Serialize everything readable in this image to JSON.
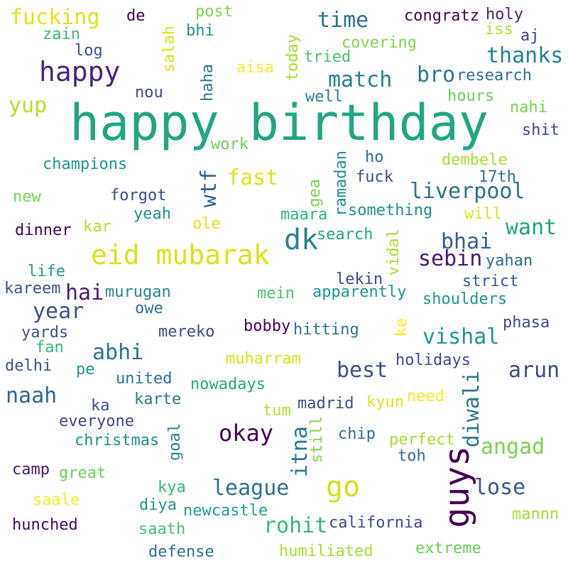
{
  "words": [
    {
      "text": "happy birthday",
      "color": "#21a584"
    },
    {
      "text": "fucking",
      "color": "#dfe318"
    },
    {
      "text": "happy",
      "color": "#482576"
    },
    {
      "text": "eid mubarak",
      "color": "#dae319"
    },
    {
      "text": "dk",
      "color": "#26828e"
    },
    {
      "text": "guys",
      "color": "#440154"
    },
    {
      "text": "go",
      "color": "#d0e11c"
    },
    {
      "text": "okay",
      "color": "#440154"
    },
    {
      "text": "time",
      "color": "#2c718e"
    },
    {
      "text": "match",
      "color": "#26818e"
    },
    {
      "text": "thanks",
      "color": "#26828e"
    },
    {
      "text": "bro",
      "color": "#2a788e"
    },
    {
      "text": "liverpool",
      "color": "#2c718e"
    },
    {
      "text": "fast",
      "color": "#dfe318"
    },
    {
      "text": "want",
      "color": "#20a386"
    },
    {
      "text": "bhai",
      "color": "#355f8d"
    },
    {
      "text": "sebin",
      "color": "#481a6c"
    },
    {
      "text": "vishal",
      "color": "#1f978b"
    },
    {
      "text": "best",
      "color": "#3b528b"
    },
    {
      "text": "arun",
      "color": "#3e4a89"
    },
    {
      "text": "diwali",
      "color": "#2a788e"
    },
    {
      "text": "itna",
      "color": "#2a788e"
    },
    {
      "text": "angad",
      "color": "#7ad151"
    },
    {
      "text": "lose",
      "color": "#38588c"
    },
    {
      "text": "league",
      "color": "#2c728e"
    },
    {
      "text": "rohit",
      "color": "#35b779"
    },
    {
      "text": "naah",
      "color": "#31688e"
    },
    {
      "text": "abhi",
      "color": "#2c728e"
    },
    {
      "text": "year",
      "color": "#3b528b"
    },
    {
      "text": "hai",
      "color": "#481f70"
    },
    {
      "text": "wtf",
      "color": "#355f8d"
    },
    {
      "text": "yup",
      "color": "#b5de2b"
    },
    {
      "text": "zain",
      "color": "#3aba76"
    },
    {
      "text": "log",
      "color": "#3b528b"
    },
    {
      "text": "de",
      "color": "#440154"
    },
    {
      "text": "post",
      "color": "#7fd34e"
    },
    {
      "text": "bhi",
      "color": "#21908d"
    },
    {
      "text": "salah",
      "color": "#dae319"
    },
    {
      "text": "congratz",
      "color": "#450559"
    },
    {
      "text": "holy",
      "color": "#481f70"
    },
    {
      "text": "iss",
      "color": "#b5de2b"
    },
    {
      "text": "aj",
      "color": "#414487"
    },
    {
      "text": "covering",
      "color": "#7fd34e"
    },
    {
      "text": "research",
      "color": "#2d708e"
    },
    {
      "text": "aisa",
      "color": "#fde725"
    },
    {
      "text": "today",
      "color": "#a8db34"
    },
    {
      "text": "tried",
      "color": "#4ac16d"
    },
    {
      "text": "haha",
      "color": "#2a788e"
    },
    {
      "text": "nou",
      "color": "#3e4a89"
    },
    {
      "text": "well",
      "color": "#26828e"
    },
    {
      "text": "hours",
      "color": "#6ccd5a"
    },
    {
      "text": "nahi",
      "color": "#7ad151"
    },
    {
      "text": "shit",
      "color": "#3e4a89"
    },
    {
      "text": "work",
      "color": "#6ccd5a"
    },
    {
      "text": "champions",
      "color": "#1f968b"
    },
    {
      "text": "ramadan",
      "color": "#21908d"
    },
    {
      "text": "ho",
      "color": "#2c718e"
    },
    {
      "text": "dembele",
      "color": "#a8db34"
    },
    {
      "text": "17th",
      "color": "#2d708e"
    },
    {
      "text": "fuck",
      "color": "#3b528b"
    },
    {
      "text": "gea",
      "color": "#7ad151"
    },
    {
      "text": "new",
      "color": "#7ad151"
    },
    {
      "text": "forgot",
      "color": "#3e4a89"
    },
    {
      "text": "yeah",
      "color": "#21908d"
    },
    {
      "text": "maara",
      "color": "#2fb47c"
    },
    {
      "text": "something",
      "color": "#21908d"
    },
    {
      "text": "will",
      "color": "#dae319"
    },
    {
      "text": "dinner",
      "color": "#440154"
    },
    {
      "text": "kar",
      "color": "#b5de2b"
    },
    {
      "text": "ole",
      "color": "#dfe318"
    },
    {
      "text": "search",
      "color": "#22a785"
    },
    {
      "text": "vidal",
      "color": "#a8db34"
    },
    {
      "text": "yahan",
      "color": "#2d708e"
    },
    {
      "text": "life",
      "color": "#1f9e89"
    },
    {
      "text": "kareem",
      "color": "#3b528b"
    },
    {
      "text": "murugan",
      "color": "#26828e"
    },
    {
      "text": "mein",
      "color": "#4ac16d"
    },
    {
      "text": "lekin",
      "color": "#3e4a89"
    },
    {
      "text": "apparently",
      "color": "#1f978b"
    },
    {
      "text": "strict",
      "color": "#38588c"
    },
    {
      "text": "shoulders",
      "color": "#1f968b"
    },
    {
      "text": "owe",
      "color": "#2c718e"
    },
    {
      "text": "yards",
      "color": "#3b528b"
    },
    {
      "text": "mereko",
      "color": "#3e4a89"
    },
    {
      "text": "bobby",
      "color": "#440154"
    },
    {
      "text": "hitting",
      "color": "#2c728e"
    },
    {
      "text": "ke",
      "color": "#fde725"
    },
    {
      "text": "phasa",
      "color": "#3e4a89"
    },
    {
      "text": "fan",
      "color": "#35b779"
    },
    {
      "text": "muharram",
      "color": "#dae319"
    },
    {
      "text": "holidays",
      "color": "#3e4a89"
    },
    {
      "text": "delhi",
      "color": "#3b528b"
    },
    {
      "text": "pe",
      "color": "#1f968b"
    },
    {
      "text": "united",
      "color": "#2c728e"
    },
    {
      "text": "nowadays",
      "color": "#22a785"
    },
    {
      "text": "ka",
      "color": "#3b528b"
    },
    {
      "text": "karte",
      "color": "#2a788e"
    },
    {
      "text": "madrid",
      "color": "#3e4a89"
    },
    {
      "text": "kyun",
      "color": "#dfe318"
    },
    {
      "text": "need",
      "color": "#fde725"
    },
    {
      "text": "tum",
      "color": "#b5de2b"
    },
    {
      "text": "everyone",
      "color": "#414487"
    },
    {
      "text": "still",
      "color": "#86d549"
    },
    {
      "text": "chip",
      "color": "#2c718e"
    },
    {
      "text": "perfect",
      "color": "#a8db34"
    },
    {
      "text": "christmas",
      "color": "#21908d"
    },
    {
      "text": "goal",
      "color": "#26828e"
    },
    {
      "text": "toh",
      "color": "#2d708e"
    },
    {
      "text": "camp",
      "color": "#481a6c"
    },
    {
      "text": "great",
      "color": "#6ccd5a"
    },
    {
      "text": "kya",
      "color": "#35b779"
    },
    {
      "text": "saale",
      "color": "#fde725"
    },
    {
      "text": "diya",
      "color": "#1f968b"
    },
    {
      "text": "newcastle",
      "color": "#1f9e89"
    },
    {
      "text": "california",
      "color": "#3e4a89"
    },
    {
      "text": "mannn",
      "color": "#a8db34"
    },
    {
      "text": "hunched",
      "color": "#46085c"
    },
    {
      "text": "saath",
      "color": "#4ac16d"
    },
    {
      "text": "defense",
      "color": "#2c718e"
    },
    {
      "text": "humiliated",
      "color": "#a8db34"
    },
    {
      "text": "extreme",
      "color": "#6ccd5a"
    }
  ]
}
